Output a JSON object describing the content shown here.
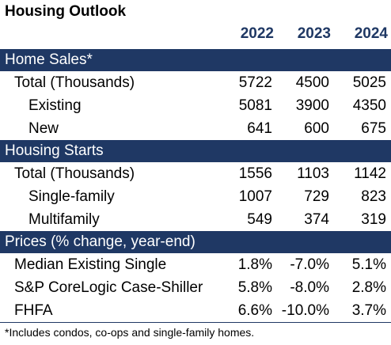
{
  "title": "Housing Outlook",
  "years": [
    "2022",
    "2023",
    "2024"
  ],
  "sections": [
    {
      "header": "Home Sales*",
      "rows": [
        {
          "label": "Total (Thousands)",
          "level": 1,
          "values": [
            "5722",
            "4500",
            "5025"
          ]
        },
        {
          "label": "Existing",
          "level": 2,
          "values": [
            "5081",
            "3900",
            "4350"
          ]
        },
        {
          "label": "New",
          "level": 2,
          "values": [
            "641",
            "600",
            "675"
          ]
        }
      ]
    },
    {
      "header": "Housing Starts",
      "rows": [
        {
          "label": "Total (Thousands)",
          "level": 1,
          "values": [
            "1556",
            "1103",
            "1142"
          ]
        },
        {
          "label": "Single-family",
          "level": 2,
          "values": [
            "1007",
            "729",
            "823"
          ]
        },
        {
          "label": "Multifamily",
          "level": 2,
          "values": [
            "549",
            "374",
            "319"
          ]
        }
      ]
    },
    {
      "header": "Prices (% change, year-end)",
      "rows": [
        {
          "label": "Median Existing Single",
          "level": 1,
          "values": [
            "1.8%",
            "-7.0%",
            "5.1%"
          ]
        },
        {
          "label": "S&P CoreLogic Case-Shiller",
          "level": 1,
          "values": [
            "5.8%",
            "-8.0%",
            "2.8%"
          ]
        },
        {
          "label": "FHFA",
          "level": 1,
          "values": [
            "6.6%",
            "-10.0%",
            "3.7%"
          ]
        }
      ]
    }
  ],
  "footnote": "*Includes condos, co-ops and single-family homes.",
  "colors": {
    "header_bg": "#1f3864",
    "year_text": "#1f3864"
  }
}
